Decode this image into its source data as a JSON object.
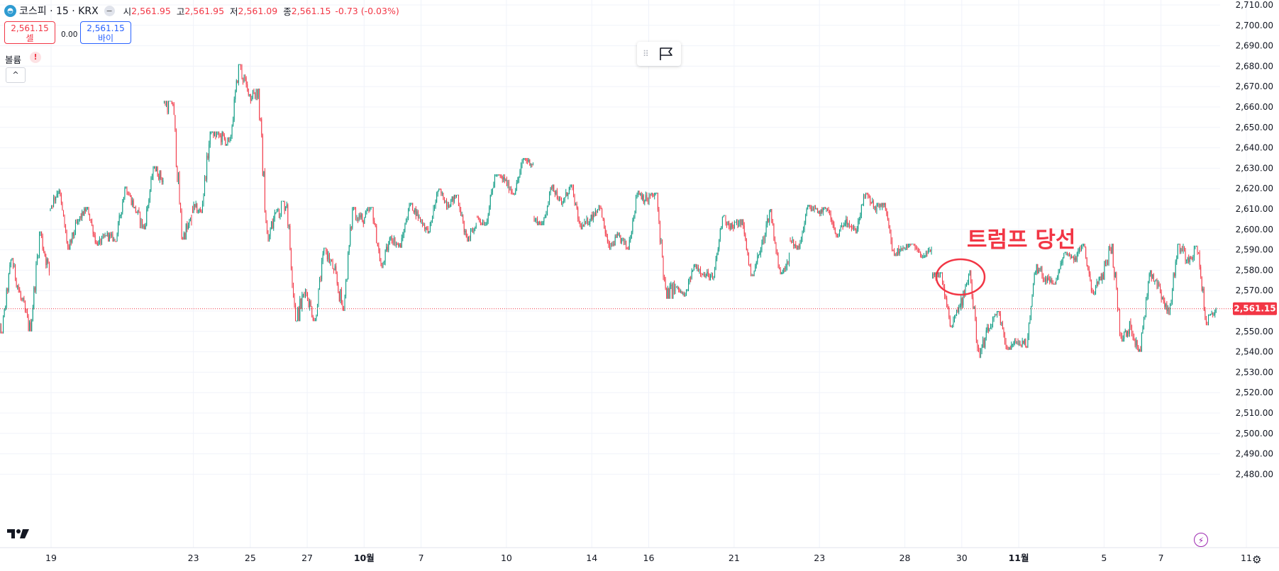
{
  "header": {
    "symbol": "코스피 · 15 · KRX",
    "open_label": "시",
    "open_value": "2,561.95",
    "high_label": "고",
    "high_value": "2,561.95",
    "low_label": "저",
    "low_value": "2,561.09",
    "close_label": "종",
    "close_value": "2,561.15",
    "change": "-0.73 (-0.03%)"
  },
  "trade": {
    "sell_price": "2,561.15",
    "sell_label": "셀",
    "spread": "0.00",
    "buy_price": "2,561.15",
    "buy_label": "바이"
  },
  "volume": {
    "label": "볼륨",
    "warning": "!",
    "collapse": "^"
  },
  "annotation": {
    "text": "트럼프 당선"
  },
  "colors": {
    "up": "#089981",
    "down": "#f23645",
    "current": "#f23645",
    "grid": "#f0f3fa",
    "text": "#131722"
  },
  "chart_data": {
    "type": "candlestick",
    "symbol": "코스피",
    "interval": "15",
    "exchange": "KRX",
    "current_price": 2561.15,
    "current_price_label": "2,561.15",
    "ylim": [
      2475,
      2712
    ],
    "y_ticks": [
      2480,
      2490,
      2500,
      2510,
      2520,
      2530,
      2540,
      2550,
      2560,
      2570,
      2580,
      2590,
      2600,
      2610,
      2620,
      2630,
      2640,
      2650,
      2660,
      2670,
      2680,
      2690,
      2700,
      2710
    ],
    "y_tick_labels": [
      "2,480.00",
      "2,490.00",
      "2,500.00",
      "2,510.00",
      "2,520.00",
      "2,530.00",
      "2,540.00",
      "2,550.00",
      "2,560.00",
      "2,570.00",
      "2,580.00",
      "2,590.00",
      "2,600.00",
      "2,610.00",
      "2,620.00",
      "2,630.00",
      "2,640.00",
      "2,650.00",
      "2,660.00",
      "2,670.00",
      "2,680.00",
      "2,690.00",
      "2,700.00",
      "2,710.00"
    ],
    "x_tick_labels": [
      "19",
      "23",
      "25",
      "27",
      "10월",
      "7",
      "10",
      "14",
      "16",
      "21",
      "23",
      "28",
      "30",
      "11월",
      "5",
      "7",
      "11"
    ],
    "x_tick_bold": [
      false,
      false,
      false,
      false,
      true,
      false,
      false,
      false,
      false,
      false,
      false,
      false,
      false,
      true,
      false,
      false,
      false
    ],
    "x_tick_bar_index": [
      0,
      5,
      7,
      9,
      11,
      13,
      16,
      19,
      21,
      24,
      27,
      30,
      32,
      34,
      37,
      39,
      42
    ],
    "total_bars": 43,
    "bars_per_day": 26,
    "sessions": [
      {
        "o": 2555,
        "h": 2586,
        "l": 2549,
        "c": 2566
      },
      {
        "o": 2566,
        "h": 2599,
        "l": 2550,
        "c": 2579
      },
      {
        "o": 2610,
        "h": 2620,
        "l": 2590,
        "c": 2604
      },
      {
        "o": 2604,
        "h": 2611,
        "l": 2592,
        "c": 2597
      },
      {
        "o": 2597,
        "h": 2621,
        "l": 2594,
        "c": 2611
      },
      {
        "o": 2611,
        "h": 2631,
        "l": 2600,
        "c": 2624
      },
      {
        "o": 2663,
        "h": 2663,
        "l": 2595,
        "c": 2603
      },
      {
        "o": 2610,
        "h": 2648,
        "l": 2608,
        "c": 2646
      },
      {
        "o": 2646,
        "h": 2681,
        "l": 2641,
        "c": 2666
      },
      {
        "o": 2666,
        "h": 2669,
        "l": 2594,
        "c": 2610
      },
      {
        "o": 2610,
        "h": 2614,
        "l": 2555,
        "c": 2570
      },
      {
        "o": 2570,
        "h": 2591,
        "l": 2555,
        "c": 2580
      },
      {
        "o": 2580,
        "h": 2611,
        "l": 2560,
        "c": 2604
      },
      {
        "o": 2604,
        "h": 2611,
        "l": 2581,
        "c": 2596
      },
      {
        "o": 2596,
        "h": 2613,
        "l": 2591,
        "c": 2606
      },
      {
        "o": 2606,
        "h": 2620,
        "l": 2598,
        "c": 2612
      },
      {
        "o": 2612,
        "h": 2617,
        "l": 2594,
        "c": 2602
      },
      {
        "o": 2606,
        "h": 2627,
        "l": 2602,
        "c": 2624
      },
      {
        "o": 2624,
        "h": 2635,
        "l": 2617,
        "c": 2632
      },
      {
        "o": 2605,
        "h": 2622,
        "l": 2602,
        "c": 2612
      },
      {
        "o": 2612,
        "h": 2622,
        "l": 2600,
        "c": 2605
      },
      {
        "o": 2605,
        "h": 2612,
        "l": 2590,
        "c": 2597
      },
      {
        "o": 2597,
        "h": 2619,
        "l": 2590,
        "c": 2614
      },
      {
        "o": 2614,
        "h": 2618,
        "l": 2566,
        "c": 2572
      },
      {
        "o": 2572,
        "h": 2583,
        "l": 2567,
        "c": 2578
      },
      {
        "o": 2578,
        "h": 2607,
        "l": 2575,
        "c": 2601
      },
      {
        "o": 2601,
        "h": 2605,
        "l": 2577,
        "c": 2590
      },
      {
        "o": 2590,
        "h": 2610,
        "l": 2578,
        "c": 2587
      },
      {
        "o": 2595,
        "h": 2612,
        "l": 2590,
        "c": 2608
      },
      {
        "o": 2608,
        "h": 2611,
        "l": 2596,
        "c": 2605
      },
      {
        "o": 2605,
        "h": 2618,
        "l": 2598,
        "c": 2611
      },
      {
        "o": 2611,
        "h": 2613,
        "l": 2587,
        "c": 2591
      },
      {
        "o": 2591,
        "h": 2593,
        "l": 2586,
        "c": 2590
      },
      {
        "o": 2576,
        "h": 2579,
        "l": 2552,
        "c": 2562
      },
      {
        "o": 2562,
        "h": 2580,
        "l": 2537,
        "c": 2550
      },
      {
        "o": 2550,
        "h": 2560,
        "l": 2541,
        "c": 2545
      },
      {
        "o": 2545,
        "h": 2583,
        "l": 2542,
        "c": 2576
      },
      {
        "o": 2576,
        "h": 2589,
        "l": 2573,
        "c": 2585
      },
      {
        "o": 2585,
        "h": 2593,
        "l": 2568,
        "c": 2578
      },
      {
        "o": 2578,
        "h": 2593,
        "l": 2545,
        "c": 2552
      },
      {
        "o": 2552,
        "h": 2580,
        "l": 2540,
        "c": 2572
      },
      {
        "o": 2572,
        "h": 2593,
        "l": 2558,
        "c": 2586
      },
      {
        "o": 2586,
        "h": 2592,
        "l": 2553,
        "c": 2561.15
      }
    ]
  }
}
